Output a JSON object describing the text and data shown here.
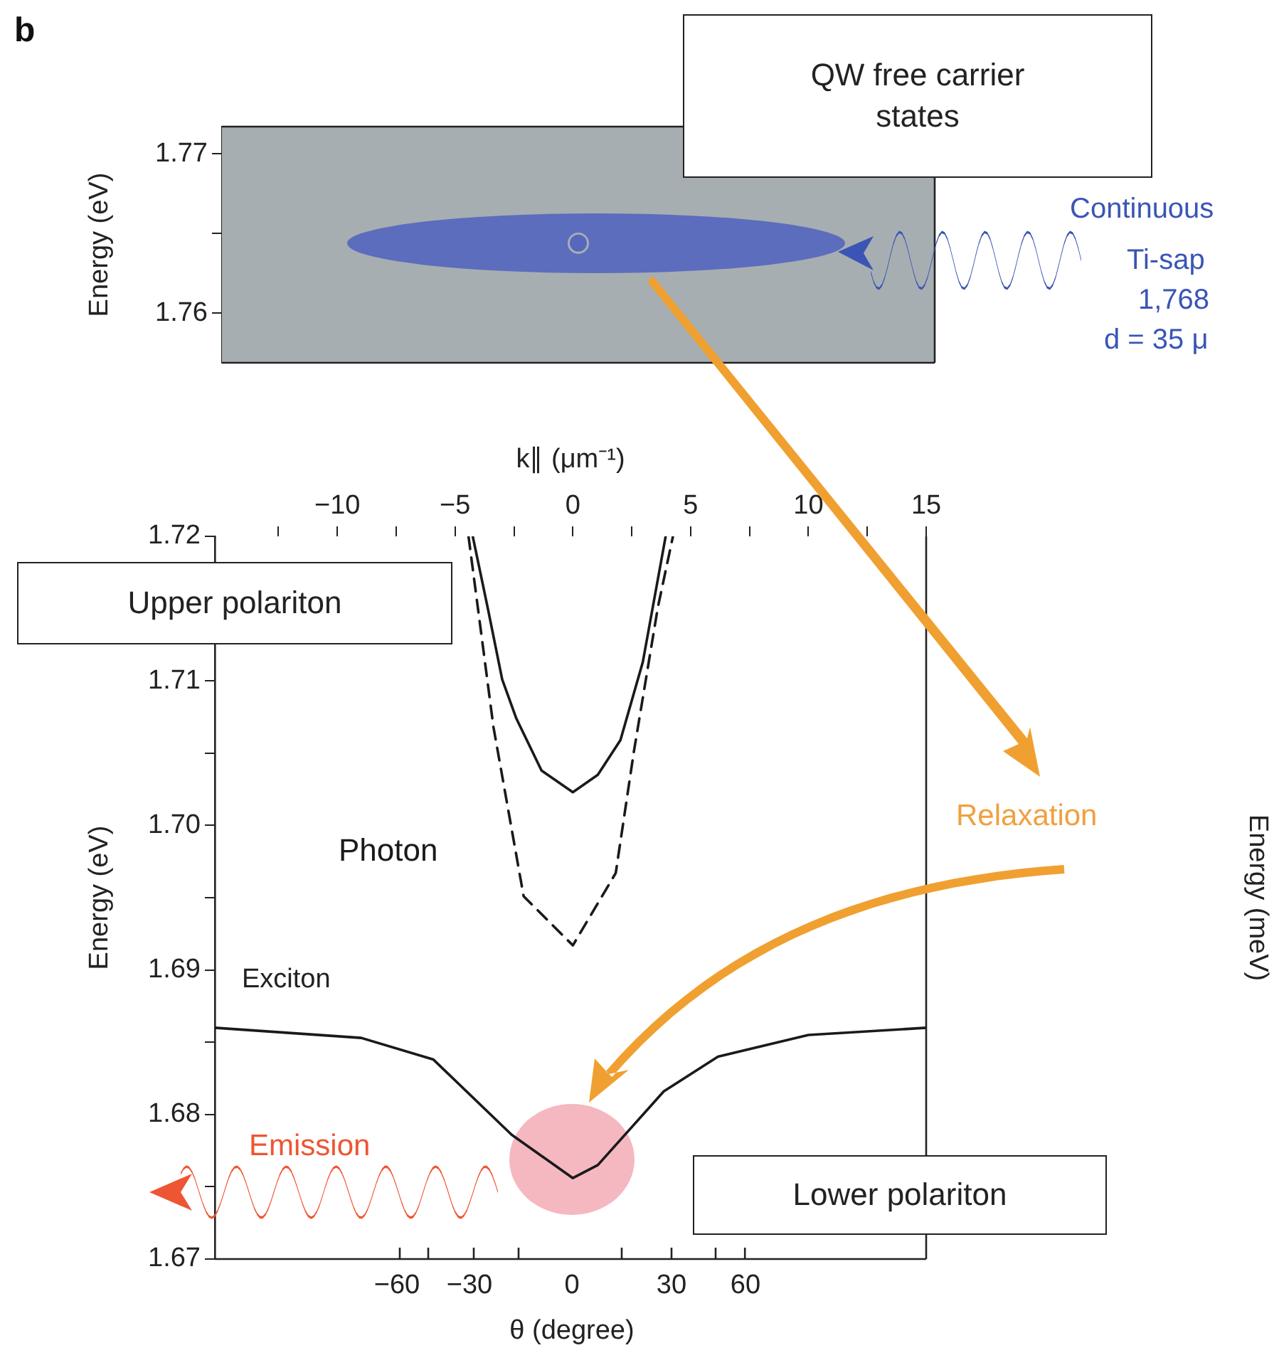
{
  "chart_data": [
    {
      "type": "scatter",
      "categories": [
        null
      ],
      "ylim": [
        1.7569,
        1.7717
      ],
      "yticks": [
        1.76,
        {
          "value": 1.765,
          "label": null
        },
        1.77
      ],
      "ylabel": "Energy (eV)",
      "tick_labels": "y",
      "marker": "circle",
      "series": [
        {
          "color": "#4a5cc0",
          "values": [
            1.7644
          ]
        }
      ],
      "bands": [
        {
          "axis": "y",
          "from": 1.7569,
          "to": 1.7717,
          "label": "QW free carrier states",
          "color": "#a7aeb1"
        }
      ],
      "annotations": [
        "b",
        "Continuous",
        "Ti-sap",
        "1,768",
        "d = 35 μ"
      ]
    },
    {
      "type": "line",
      "xlim": [
        -15.2,
        15
      ],
      "ylim": [
        1.67,
        1.72
      ],
      "xlabel": "k∥ (μm⁻¹)",
      "ylabel": "Energy (eV)",
      "y2label": "Energy (meV)",
      "xticks": [
        {
          "value": -12.5,
          "label": null
        },
        {
          "value": -10,
          "label": "−10"
        },
        {
          "value": -7.5,
          "label": null
        },
        {
          "value": -5,
          "label": "−5"
        },
        {
          "value": -2.5,
          "label": null
        },
        0,
        {
          "value": 2.5,
          "label": null
        },
        5,
        {
          "value": 7.5,
          "label": null
        },
        10,
        {
          "value": 12.5,
          "label": null
        },
        15
      ],
      "yticks": [
        1.67,
        {
          "value": 1.675,
          "label": null
        },
        1.68,
        {
          "value": 1.685,
          "label": null
        },
        1.69,
        {
          "value": 1.695,
          "label": null
        },
        {
          "value": 1.7,
          "label": "1.70"
        },
        {
          "value": 1.705,
          "label": null
        },
        1.71,
        {
          "value": 1.715,
          "label": null
        },
        1.72
      ],
      "series": [
        {
          "name": "Upper polariton",
          "color": "#1a1a1a",
          "x": [
            -4.25,
            -3.62,
            -3.0,
            -2.4,
            -1.33,
            0,
            1.06,
            2.02,
            2.97,
            3.94
          ],
          "values": [
            1.72,
            1.7151,
            1.7101,
            1.7074,
            1.7038,
            1.7023,
            1.7035,
            1.7059,
            1.7113,
            1.72
          ]
        },
        {
          "name": "Photon",
          "color": "#1a1a1a",
          "line_style": "dashed",
          "x": [
            -4.43,
            -3.37,
            -2.09,
            0,
            1.82,
            2.59,
            3.61,
            4.25
          ],
          "values": [
            1.72,
            1.7068,
            1.6951,
            1.6917,
            1.6967,
            1.7051,
            1.7151,
            1.72
          ]
        },
        {
          "name": "Lower polariton",
          "color": "#1a1a1a",
          "x": [
            -15.2,
            -8.98,
            -5.92,
            -2.6,
            0,
            1.06,
            3.86,
            6.16,
            10,
            15
          ],
          "values": [
            1.686,
            1.6853,
            1.6838,
            1.6786,
            1.6756,
            1.6765,
            1.6816,
            1.684,
            1.6855,
            1.686
          ]
        }
      ],
      "annotations": [
        "Exciton",
        "Emission",
        "Relaxation",
        "θ (degree)",
        "−60",
        "−30",
        "0",
        "30",
        "60"
      ]
    }
  ]
}
